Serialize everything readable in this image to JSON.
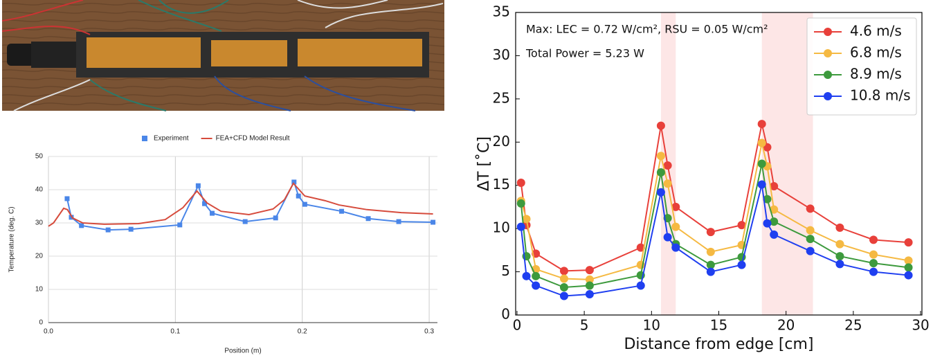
{
  "chart_data": [
    {
      "type": "line",
      "xlabel": "Position (m)",
      "ylabel": "Temperature (deg. C)",
      "xlim": [
        0,
        0.3065
      ],
      "ylim": [
        0,
        50
      ],
      "xticks": [
        {
          "value": 0,
          "label": "0.0"
        },
        0.1,
        0.2,
        0.3
      ],
      "yticks": [
        0,
        10,
        20,
        30,
        40,
        50
      ],
      "grid": true,
      "legend": "top",
      "series": [
        {
          "name": "Experiment",
          "color": "#4a86e8",
          "marker": "square",
          "x": [
            0.0147,
            0.018,
            0.026,
            0.047,
            0.065,
            0.1035,
            0.118,
            0.123,
            0.129,
            0.155,
            0.179,
            0.1935,
            0.197,
            0.202,
            0.231,
            0.252,
            0.276,
            0.303
          ],
          "values": [
            37.3,
            31.7,
            29.2,
            27.9,
            28.1,
            29.4,
            41.2,
            35.8,
            32.9,
            30.4,
            31.5,
            42.3,
            38.1,
            35.6,
            33.5,
            31.3,
            30.4,
            30.2
          ]
        },
        {
          "name": "FEA+CFD Model Result",
          "color": "#d64b3c",
          "marker": "none",
          "x": [
            0,
            0.004,
            0.012,
            0.015,
            0.019,
            0.027,
            0.044,
            0.071,
            0.092,
            0.106,
            0.117,
            0.125,
            0.136,
            0.158,
            0.177,
            0.186,
            0.193,
            0.202,
            0.218,
            0.229,
            0.251,
            0.278,
            0.303
          ],
          "values": [
            29,
            30,
            34.4,
            34,
            31.5,
            30,
            29.6,
            29.8,
            31,
            34.6,
            39.6,
            36,
            33.5,
            32.5,
            34.2,
            37,
            41.9,
            38.1,
            36.7,
            35.4,
            34,
            33.1,
            32.7
          ]
        }
      ]
    },
    {
      "type": "line",
      "xlabel": "Distance from edge [cm]",
      "ylabel": "ΔT [˚C]",
      "annotations": [
        "Max: LEC = 0.72 W/cm², RSU = 0.05 W/cm²",
        "Total Power = 5.23 W"
      ],
      "xlim": [
        -0.1,
        30.1
      ],
      "ylim": [
        0,
        35
      ],
      "xticks": [
        0,
        5,
        10,
        15,
        20,
        25,
        30
      ],
      "yticks": [
        0,
        5,
        10,
        15,
        20,
        25,
        30,
        35
      ],
      "grid": false,
      "legend": "upper right",
      "shaded_regions": [
        [
          10.7,
          11.8
        ],
        [
          18.2,
          22.0
        ]
      ],
      "shade_color": "#fde6e6",
      "x": [
        0.3,
        0.7,
        1.4,
        3.5,
        5.4,
        9.2,
        10.7,
        11.2,
        11.8,
        14.4,
        16.7,
        18.2,
        18.6,
        19.1,
        21.8,
        24.0,
        26.5,
        29.1
      ],
      "series": [
        {
          "name": "4.6 m/s",
          "color": "#e8403a",
          "marker": "circle",
          "values": [
            15.3,
            10.4,
            7.1,
            5.1,
            5.2,
            7.8,
            21.9,
            17.3,
            12.5,
            9.6,
            10.4,
            22.1,
            19.4,
            14.9,
            12.3,
            10.1,
            8.7,
            8.4
          ]
        },
        {
          "name": "6.8 m/s",
          "color": "#f5b942",
          "marker": "circle",
          "values": [
            13.2,
            11.1,
            5.3,
            4.2,
            4.1,
            5.8,
            18.4,
            15.2,
            10.2,
            7.3,
            8.1,
            19.9,
            17.2,
            12.2,
            9.8,
            8.2,
            7.0,
            6.3
          ]
        },
        {
          "name": "8.9 m/s",
          "color": "#3d9a3d",
          "marker": "circle",
          "values": [
            12.9,
            6.8,
            4.5,
            3.2,
            3.4,
            4.6,
            16.5,
            11.2,
            8.2,
            5.8,
            6.7,
            17.5,
            13.4,
            10.8,
            8.8,
            6.8,
            6.0,
            5.5
          ]
        },
        {
          "name": "10.8 m/s",
          "color": "#1f3ff0",
          "marker": "circle",
          "values": [
            10.2,
            4.5,
            3.4,
            2.2,
            2.4,
            3.4,
            14.2,
            9.0,
            7.8,
            5.0,
            5.8,
            15.1,
            10.6,
            9.3,
            7.4,
            5.9,
            5.0,
            4.6
          ]
        }
      ]
    }
  ]
}
